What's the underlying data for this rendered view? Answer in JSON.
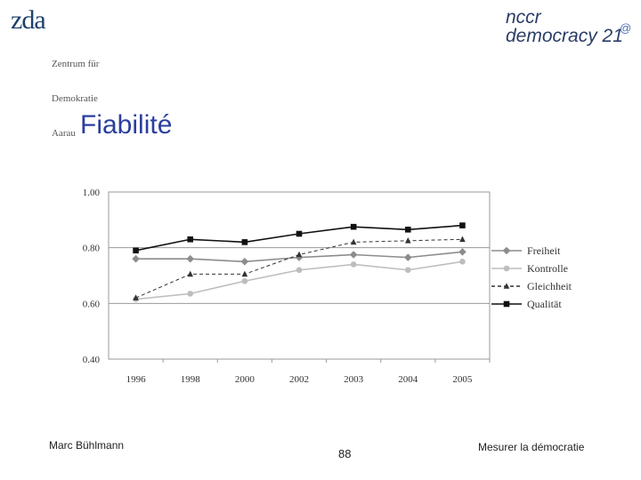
{
  "logo_left": {
    "mark": "zda",
    "lines": [
      "Zentrum für",
      "Demokratie",
      "Aarau"
    ]
  },
  "logo_right": {
    "line1": "nccr",
    "line2": "democracy 21",
    "symbol": "@"
  },
  "slide_title": "Fiabilité",
  "footer": {
    "left": "Marc Bühlmann",
    "center": "88",
    "right": "Mesurer la démocratie"
  },
  "chart_data": {
    "type": "line",
    "title": "",
    "xlabel": "",
    "ylabel": "",
    "categories": [
      "1996",
      "1998",
      "2000",
      "2002",
      "2003",
      "2004",
      "2005"
    ],
    "ylim": [
      0.4,
      1.0
    ],
    "yticks": [
      "0.40",
      "0.60",
      "0.80",
      "1.00"
    ],
    "grid": true,
    "legend_position": "right",
    "series": [
      {
        "name": "Freiheit",
        "marker": "diamond",
        "color": "#8c8c8c",
        "dash": "solid",
        "values": [
          0.76,
          0.76,
          0.75,
          0.765,
          0.775,
          0.765,
          0.785
        ]
      },
      {
        "name": "Kontrolle",
        "marker": "circle",
        "color": "#bdbdbd",
        "dash": "solid",
        "values": [
          0.615,
          0.635,
          0.68,
          0.72,
          0.74,
          0.72,
          0.75
        ]
      },
      {
        "name": "Gleichheit",
        "marker": "triangle",
        "color": "#333333",
        "dash": "dashed",
        "values": [
          0.62,
          0.705,
          0.705,
          0.775,
          0.82,
          0.825,
          0.83
        ]
      },
      {
        "name": "Qualität",
        "marker": "square",
        "color": "#111111",
        "dash": "solid",
        "values": [
          0.79,
          0.83,
          0.82,
          0.85,
          0.875,
          0.865,
          0.88
        ]
      }
    ]
  }
}
